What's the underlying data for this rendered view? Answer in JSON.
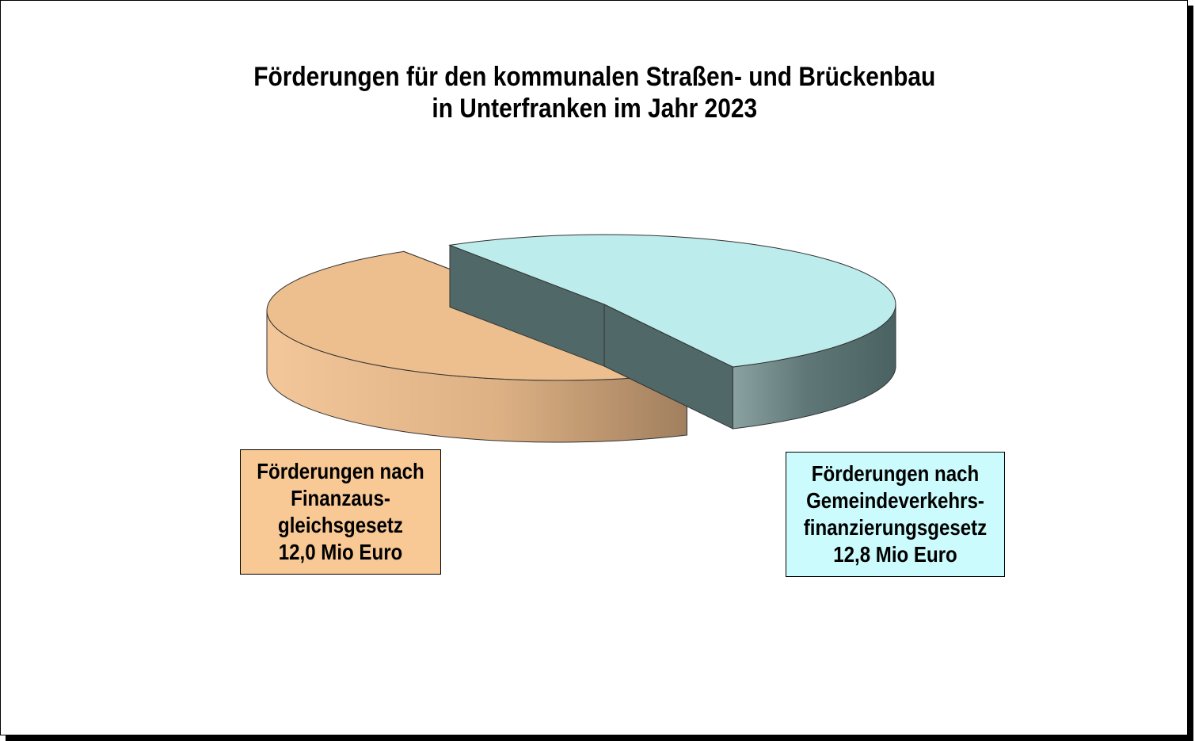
{
  "chart_data": {
    "type": "pie",
    "title": [
      "Förderungen für den kommunalen Straßen- und Brückenbau",
      "in Unterfranken im Jahr 2023"
    ],
    "legend": "none",
    "slices": [
      {
        "label_lines": [
          "Förderungen nach",
          "Finanzaus-",
          "gleichsgesetz",
          "12,0 Mio Euro"
        ],
        "value": 12.0,
        "unit": "Mio Euro",
        "color": "#edbf8e",
        "side_color": "#c9a077"
      },
      {
        "label_lines": [
          "Förderungen nach",
          "Gemeindeverkehrs-",
          "finanzierungsgesetz",
          "12,8 Mio Euro"
        ],
        "value": 12.8,
        "unit": "Mio Euro",
        "color": "#bdeced",
        "side_color": "#506868"
      }
    ],
    "label_box_colors": [
      "#f9c995",
      "#cbfbfc"
    ]
  }
}
